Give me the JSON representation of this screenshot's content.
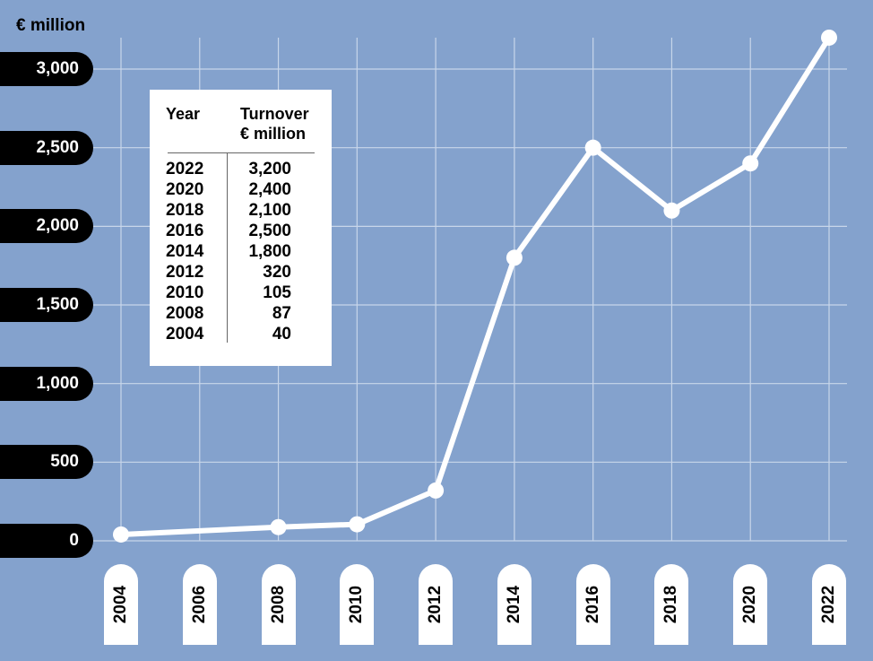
{
  "chart_data": {
    "type": "line",
    "y_unit_label": "€ million",
    "x": [
      2004,
      2008,
      2010,
      2012,
      2014,
      2016,
      2018,
      2020,
      2022
    ],
    "values": [
      40,
      87,
      105,
      320,
      1800,
      2500,
      2100,
      2400,
      3200
    ],
    "x_ticks": [
      "2004",
      "2006",
      "2008",
      "2010",
      "2012",
      "2014",
      "2016",
      "2018",
      "2020",
      "2022"
    ],
    "y_ticks": [
      "3,000",
      "2,500",
      "2,000",
      "1,500",
      "1,000",
      "500",
      "0"
    ],
    "xlim": [
      2004,
      2022
    ],
    "ylim": [
      0,
      3200
    ],
    "grid": true,
    "colors": {
      "background": "#84a2cd",
      "line": "#ffffff",
      "grid": "#c8d6ea",
      "tick_bg": "#000000"
    }
  },
  "table": {
    "header_year": "Year",
    "header_turnover_line1": "Turnover",
    "header_turnover_line2": "€ million",
    "rows": [
      {
        "year": "2022",
        "value": "3,200"
      },
      {
        "year": "2020",
        "value": "2,400"
      },
      {
        "year": "2018",
        "value": "2,100"
      },
      {
        "year": "2016",
        "value": "2,500"
      },
      {
        "year": "2014",
        "value": "1,800"
      },
      {
        "year": "2012",
        "value": "320"
      },
      {
        "year": "2010",
        "value": "105"
      },
      {
        "year": "2008",
        "value": "87"
      },
      {
        "year": "2004",
        "value": "40"
      }
    ]
  }
}
